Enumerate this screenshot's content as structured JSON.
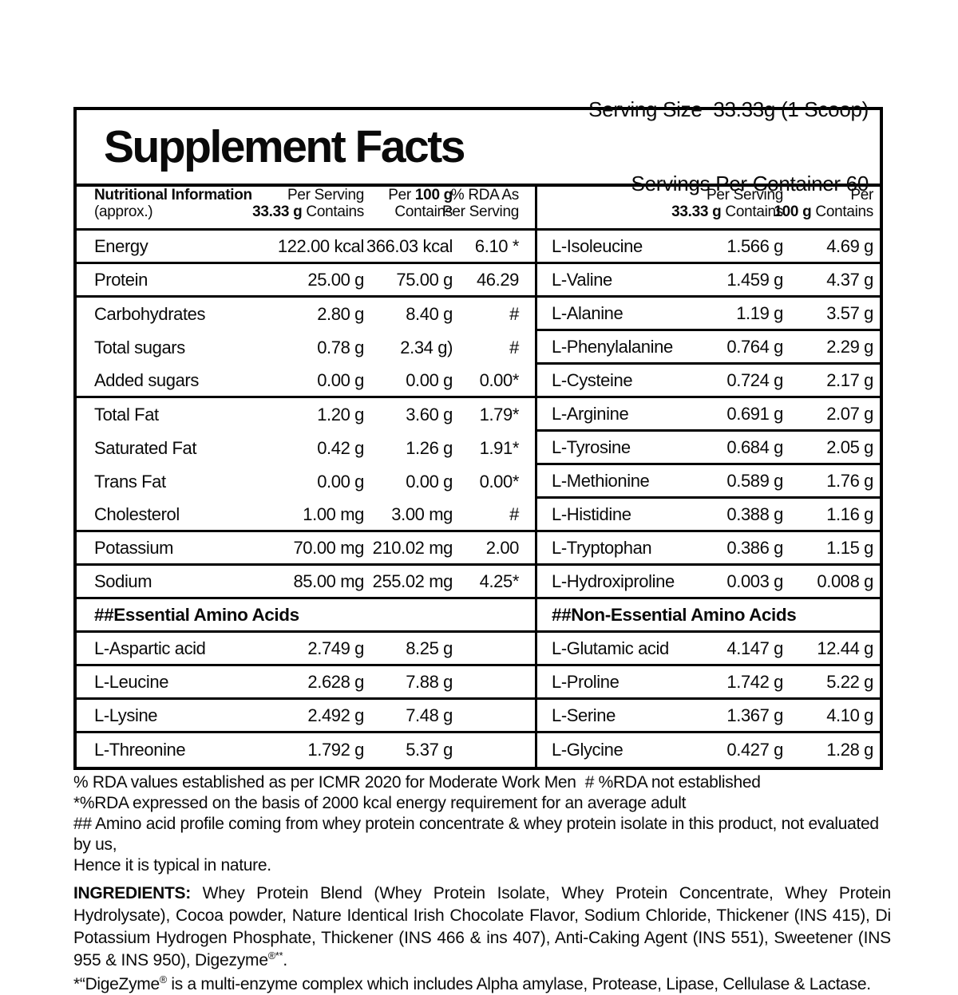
{
  "header": {
    "title": "Supplement Facts",
    "serving_line1": "Serving Size  33.33g (1 Scoop)",
    "serving_line2": "Servings Per Container 60"
  },
  "left": {
    "head": {
      "c1a": "Nutritional Information",
      "c1b": "(approx.)",
      "c2a": "Per Serving",
      "c2b_bold": "33.33 g",
      "c2b_rest": " Contains",
      "c3a_pre": "Per ",
      "c3a_bold": "100 g",
      "c3b": "Contains",
      "c4a": "% RDA As",
      "c4b": "Per Serving"
    },
    "rows": [
      {
        "name": "Energy",
        "serving": "122.00 kcal",
        "per100": "366.03 kcal",
        "rda": "6.10 *"
      },
      {
        "name": "Protein",
        "serving": "25.00 g",
        "per100": "75.00 g",
        "rda": "46.29"
      },
      {
        "name": "Carbohydrates",
        "serving": "2.80 g",
        "per100": "8.40 g",
        "rda": "#"
      },
      {
        "name": "Total sugars",
        "serving": "0.78 g",
        "per100": "2.34 g)",
        "rda": "#"
      },
      {
        "name": "Added sugars",
        "serving": "0.00 g",
        "per100": "0.00 g",
        "rda": "0.00*"
      },
      {
        "name": "Total Fat",
        "serving": "1.20 g",
        "per100": "3.60 g",
        "rda": "1.79*"
      },
      {
        "name": "Saturated Fat",
        "serving": "0.42 g",
        "per100": "1.26 g",
        "rda": "1.91*"
      },
      {
        "name": "Trans Fat",
        "serving": "0.00 g",
        "per100": "0.00 g",
        "rda": "0.00*"
      },
      {
        "name": "Cholesterol",
        "serving": "1.00 mg",
        "per100": "3.00 mg",
        "rda": "#"
      },
      {
        "name": "Potassium",
        "serving": "70.00 mg",
        "per100": "210.02 mg",
        "rda": "2.00"
      },
      {
        "name": "Sodium",
        "serving": "85.00 mg",
        "per100": "255.02 mg",
        "rda": "4.25*"
      },
      {
        "section": "##Essential Amino Acids"
      },
      {
        "name": "L-Aspartic acid",
        "serving": "2.749 g",
        "per100": "8.25 g",
        "rda": ""
      },
      {
        "name": "L-Leucine",
        "serving": "2.628 g",
        "per100": "7.88 g",
        "rda": ""
      },
      {
        "name": "L-Lysine",
        "serving": "2.492 g",
        "per100": "7.48 g",
        "rda": ""
      },
      {
        "name": "L-Threonine",
        "serving": "1.792 g",
        "per100": "5.37 g",
        "rda": ""
      }
    ]
  },
  "right": {
    "head": {
      "c2a": "Per Serving",
      "c2b_bold": "33.33 g",
      "c2b_rest": " Contains",
      "c3a": "Per",
      "c3b_bold": "100 g",
      "c3b_rest": " Contains"
    },
    "rows": [
      {
        "name": "L-Isoleucine",
        "serving": "1.566 g",
        "per100": "4.69 g"
      },
      {
        "name": "L-Valine",
        "serving": "1.459 g",
        "per100": "4.37 g"
      },
      {
        "name": "L-Alanine",
        "serving": "1.19 g",
        "per100": "3.57 g"
      },
      {
        "name": "L-Phenylalanine",
        "serving": "0.764 g",
        "per100": "2.29 g"
      },
      {
        "name": "L-Cysteine",
        "serving": "0.724 g",
        "per100": "2.17 g"
      },
      {
        "name": "L-Arginine",
        "serving": "0.691 g",
        "per100": "2.07 g"
      },
      {
        "name": "L-Tyrosine",
        "serving": "0.684 g",
        "per100": "2.05 g"
      },
      {
        "name": "L-Methionine",
        "serving": "0.589 g",
        "per100": "1.76 g"
      },
      {
        "name": "L-Histidine",
        "serving": "0.388 g",
        "per100": "1.16 g"
      },
      {
        "name": "L-Tryptophan",
        "serving": "0.386 g",
        "per100": "1.15 g"
      },
      {
        "name": "L-Hydroxiproline",
        "serving": "0.003 g",
        "per100": "0.008 g"
      },
      {
        "section": "##Non-Essential Amino Acids"
      },
      {
        "name": "L-Glutamic acid",
        "serving": "4.147 g",
        "per100": "12.44 g"
      },
      {
        "name": "L-Proline",
        "serving": "1.742 g",
        "per100": "5.22 g"
      },
      {
        "name": "L-Serine",
        "serving": "1.367 g",
        "per100": "4.10 g"
      },
      {
        "name": "L-Glycine",
        "serving": "0.427 g",
        "per100": "1.28 g"
      }
    ]
  },
  "footnotes": [
    "% RDA values established as per ICMR 2020 for Moderate Work Men  # %RDA not established",
    "*%RDA expressed on the basis of 2000 kcal energy requirement for an average adult",
    "## Amino acid profile coming from whey protein concentrate & whey protein isolate in this product, not evaluated by us,",
    "Hence it is typical in nature."
  ],
  "ingredients": {
    "label": "INGREDIENTS:",
    "text": " Whey Protein Blend (Whey Protein Isolate, Whey Protein Concentrate,  Whey Protein Hydrolysate), Cocoa powder, Nature Identical Irish Chocolate Flavor, Sodium Chloride, Thickener (INS 415), Di Potassium Hydrogen Phosphate, Thickener (INS 466 & ins 407), Anti-Caking Agent (INS 551), Sweetener (INS 955 & INS 950), Digezyme",
    "sup": "®**",
    "end": "."
  },
  "digezyme_note": {
    "pre": "*“DigeZyme",
    "sup": "®",
    "post": " is a multi-enzyme complex which includes Alpha amylase, Protease, Lipase, Cellulase & Lactase."
  }
}
